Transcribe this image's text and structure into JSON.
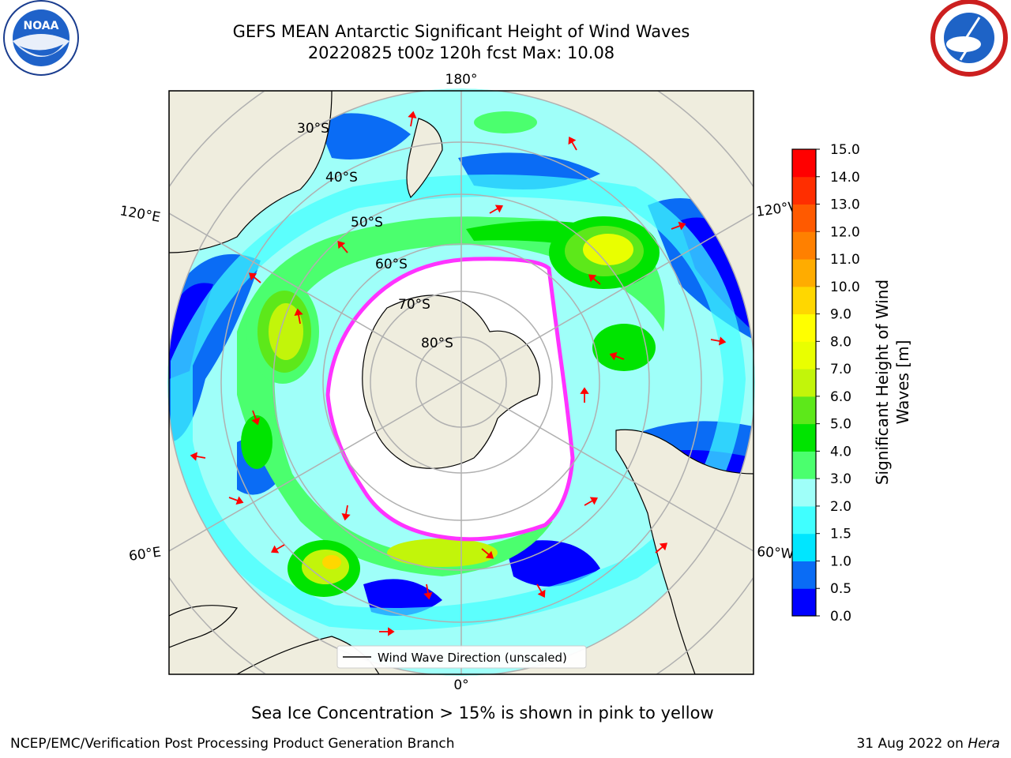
{
  "title_line1": "GEFS MEAN Antarctic Significant Height of Wind Waves",
  "title_line2": "20220825 t00z 120h fcst   Max: 10.08",
  "logos": {
    "left_icon": "noaa-logo",
    "right_icon": "national-weather-service-logo"
  },
  "map": {
    "projection": "south-polar-stereographic",
    "longitude_labels": [
      "180°",
      "120°E",
      "120°W",
      "60°E",
      "60°W",
      "0°"
    ],
    "latitude_labels": [
      "30°S",
      "40°S",
      "50°S",
      "60°S",
      "70°S",
      "80°S"
    ],
    "legend_label": "Wind Wave Direction (unscaled)",
    "arrow_color": "#ff0000",
    "ice_edge_color": "#ff33ff"
  },
  "colorbar": {
    "label_line1": "Significant Height of Wind",
    "label_line2": "Waves [m]",
    "ticks": [
      "0.0",
      "0.5",
      "1.0",
      "1.5",
      "2.0",
      "3.0",
      "4.0",
      "5.0",
      "6.0",
      "7.0",
      "8.0",
      "9.0",
      "10.0",
      "11.0",
      "12.0",
      "13.0",
      "14.0",
      "15.0"
    ],
    "colors": [
      "#0000ff",
      "#0a6cf5",
      "#00e6ff",
      "#40ffff",
      "#9ffff9",
      "#4bff6e",
      "#00e400",
      "#5de81a",
      "#c2f50a",
      "#e9ff00",
      "#ffff00",
      "#ffd700",
      "#ffac00",
      "#ff8000",
      "#ff5a00",
      "#ff2e00",
      "#ff0000"
    ]
  },
  "caption": "Sea Ice Concentration > 15% is shown in pink to yellow",
  "footer_left": "NCEP/EMC/Verification Post Processing Product Generation Branch",
  "footer_right_date": "31 Aug 2022 on ",
  "footer_right_host": "Hera"
}
